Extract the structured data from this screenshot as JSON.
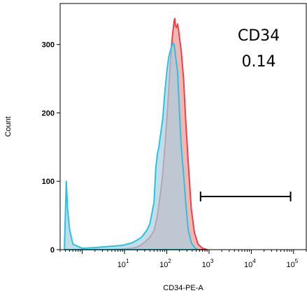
{
  "chart_data": {
    "type": "area",
    "title": "",
    "xlabel": "CD34-PE-A",
    "ylabel": "Count",
    "x_scale": "log",
    "xlim": [
      0.3,
      200000
    ],
    "ylim": [
      0,
      360
    ],
    "x_ticks": [
      {
        "value": 10,
        "base": "10",
        "exp": "1"
      },
      {
        "value": 100,
        "base": "10",
        "exp": "2"
      },
      {
        "value": 1000,
        "base": "10",
        "exp": "3"
      },
      {
        "value": 10000,
        "base": "10",
        "exp": "4"
      },
      {
        "value": 100000,
        "base": "10",
        "exp": "5"
      }
    ],
    "y_ticks": [
      {
        "value": 0,
        "label": "0"
      },
      {
        "value": 100,
        "label": "100"
      },
      {
        "value": 200,
        "label": "200"
      },
      {
        "value": 300,
        "label": "300"
      }
    ],
    "annotation": {
      "line1": "CD34",
      "line2": "0.14"
    },
    "gate": {
      "x_start": 630,
      "x_end": 85000
    },
    "series": [
      {
        "color": "#e8434b",
        "fill": "#f2a9a4",
        "points": [
          [
            0.55,
            0
          ],
          [
            5,
            0
          ],
          [
            10,
            1
          ],
          [
            15,
            2
          ],
          [
            20,
            4
          ],
          [
            25,
            7
          ],
          [
            30,
            11
          ],
          [
            40,
            18
          ],
          [
            50,
            28
          ],
          [
            60,
            50
          ],
          [
            70,
            80
          ],
          [
            80,
            110
          ],
          [
            90,
            150
          ],
          [
            100,
            190
          ],
          [
            110,
            230
          ],
          [
            120,
            270
          ],
          [
            130,
            300
          ],
          [
            140,
            320
          ],
          [
            150,
            335
          ],
          [
            155,
            338
          ],
          [
            160,
            328
          ],
          [
            170,
            325
          ],
          [
            180,
            330
          ],
          [
            190,
            322
          ],
          [
            200,
            310
          ],
          [
            220,
            290
          ],
          [
            250,
            250
          ],
          [
            280,
            190
          ],
          [
            320,
            130
          ],
          [
            380,
            60
          ],
          [
            450,
            25
          ],
          [
            550,
            8
          ],
          [
            700,
            2
          ],
          [
            900,
            0
          ]
        ]
      },
      {
        "color": "#27c4e0",
        "fill": "#a6cfe0",
        "points": [
          [
            0.38,
            5
          ],
          [
            0.42,
            100
          ],
          [
            0.45,
            60
          ],
          [
            0.5,
            30
          ],
          [
            0.6,
            8
          ],
          [
            1,
            2
          ],
          [
            2,
            3
          ],
          [
            3,
            4
          ],
          [
            5,
            5
          ],
          [
            8,
            6
          ],
          [
            10,
            7
          ],
          [
            15,
            10
          ],
          [
            20,
            14
          ],
          [
            25,
            18
          ],
          [
            30,
            24
          ],
          [
            35,
            30
          ],
          [
            40,
            38
          ],
          [
            50,
            70
          ],
          [
            55,
            120
          ],
          [
            60,
            140
          ],
          [
            65,
            150
          ],
          [
            70,
            165
          ],
          [
            80,
            190
          ],
          [
            90,
            230
          ],
          [
            100,
            260
          ],
          [
            110,
            280
          ],
          [
            120,
            290
          ],
          [
            130,
            297
          ],
          [
            140,
            302
          ],
          [
            150,
            300
          ],
          [
            160,
            285
          ],
          [
            180,
            260
          ],
          [
            200,
            200
          ],
          [
            220,
            150
          ],
          [
            250,
            110
          ],
          [
            280,
            70
          ],
          [
            320,
            30
          ],
          [
            380,
            10
          ],
          [
            450,
            3
          ],
          [
            550,
            0
          ]
        ]
      }
    ]
  }
}
